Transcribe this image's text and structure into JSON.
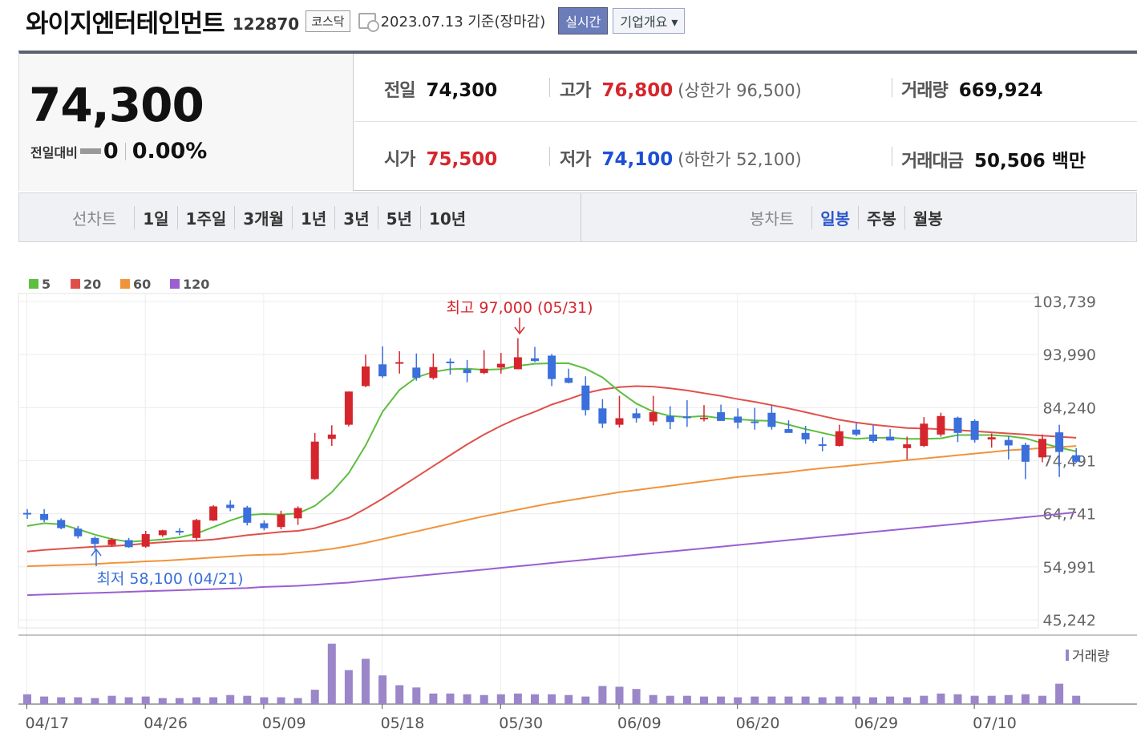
{
  "header": {
    "company": "와이지엔터테인먼트",
    "code": "122870",
    "market": "코스닥",
    "date": "2023.07.13 기준(장마감)",
    "realtime_label": "실시간",
    "company_info_label": "기업개요 ▾"
  },
  "summary": {
    "price": "74,300",
    "diff_label": "전일대비",
    "diff_value": "0",
    "diff_rate": "0.00%",
    "prev_label": "전일",
    "prev": "74,300",
    "high_label": "고가",
    "high": "76,800",
    "upper_limit": "(상한가 96,500)",
    "volume_label": "거래량",
    "volume": "669,924",
    "open_label": "시가",
    "open": "75,500",
    "low_label": "저가",
    "low": "74,100",
    "lower_limit": "(하한가 52,100)",
    "amount_label": "거래대금",
    "amount": "50,506 백만"
  },
  "period": {
    "line_label": "선차트",
    "line_items": [
      "1일",
      "1주일",
      "3개월",
      "1년",
      "3년",
      "5년",
      "10년"
    ],
    "candle_label": "봉차트",
    "candle_items": [
      "일봉",
      "주봉",
      "월봉"
    ],
    "active_candle": "일봉"
  },
  "chart_data": {
    "type": "candlestick",
    "y_ticks": [
      "103,739",
      "93,990",
      "84,240",
      "74,491",
      "64,741",
      "54,991",
      "45,242"
    ],
    "ylim": [
      45242,
      103739
    ],
    "x_ticks": [
      "04/17",
      "04/26",
      "05/09",
      "05/18",
      "05/30",
      "06/09",
      "06/20",
      "06/29",
      "07/10"
    ],
    "legend": [
      {
        "name": "5",
        "color": "#5cbf3f"
      },
      {
        "name": "20",
        "color": "#e0504a"
      },
      {
        "name": "60",
        "color": "#f0943c"
      },
      {
        "name": "120",
        "color": "#9b5fd0"
      }
    ],
    "annotations": {
      "max": "최고 97,000 (05/31)",
      "min": "최저 58,100 (04/21)"
    },
    "volume_label": "거래량",
    "up_color": "#d6262d",
    "down_color": "#3a6fdc",
    "candles": [
      [
        64900,
        65600,
        63800,
        64700
      ],
      [
        64700,
        65600,
        63200,
        63600
      ],
      [
        63600,
        63900,
        61900,
        62100
      ],
      [
        62000,
        62500,
        60200,
        60600
      ],
      [
        60300,
        60600,
        58100,
        59200
      ],
      [
        59000,
        60300,
        58700,
        60000
      ],
      [
        59900,
        60300,
        58500,
        58600
      ],
      [
        58700,
        61600,
        58500,
        61000
      ],
      [
        60800,
        61800,
        60500,
        61700
      ],
      [
        61600,
        62100,
        60800,
        61300
      ],
      [
        60300,
        63800,
        59800,
        63600
      ],
      [
        63500,
        66300,
        63400,
        66100
      ],
      [
        66400,
        67200,
        65200,
        65800
      ],
      [
        65900,
        66200,
        62600,
        63100
      ],
      [
        63000,
        63500,
        61700,
        62100
      ],
      [
        62300,
        65300,
        61900,
        64600
      ],
      [
        63900,
        66100,
        62700,
        65800
      ],
      [
        71100,
        79600,
        71000,
        78000
      ],
      [
        78500,
        81000,
        77200,
        79300
      ],
      [
        81100,
        87200,
        80800,
        87200
      ],
      [
        88200,
        94000,
        88000,
        91800
      ],
      [
        92200,
        95500,
        89700,
        90000
      ],
      [
        92400,
        94600,
        90500,
        92600
      ],
      [
        91600,
        94200,
        89200,
        89700
      ],
      [
        89700,
        94200,
        89400,
        91700
      ],
      [
        92700,
        93300,
        90300,
        92400
      ],
      [
        91300,
        93000,
        88900,
        90600
      ],
      [
        90600,
        94800,
        90400,
        91400
      ],
      [
        91600,
        94300,
        90500,
        92300
      ],
      [
        91300,
        97000,
        91300,
        93500
      ],
      [
        93300,
        95400,
        92600,
        92800
      ],
      [
        93800,
        94100,
        88200,
        89500
      ],
      [
        89700,
        91400,
        88700,
        88800
      ],
      [
        88300,
        90000,
        82800,
        83800
      ],
      [
        84100,
        85800,
        80500,
        81300
      ],
      [
        81100,
        86400,
        80600,
        82300
      ],
      [
        83200,
        84100,
        81500,
        82300
      ],
      [
        81700,
        86400,
        81000,
        83400
      ],
      [
        82700,
        84500,
        80300,
        81600
      ],
      [
        82600,
        85600,
        80700,
        82300
      ],
      [
        82300,
        84700,
        81700,
        82400
      ],
      [
        83400,
        84800,
        82200,
        81800
      ],
      [
        82600,
        84100,
        80400,
        81500
      ],
      [
        81700,
        84200,
        80200,
        81500
      ],
      [
        83300,
        84600,
        80200,
        80700
      ],
      [
        80300,
        81900,
        79800,
        79600
      ],
      [
        79600,
        80900,
        77600,
        78400
      ],
      [
        77500,
        78800,
        76200,
        77200
      ],
      [
        77200,
        81100,
        77100,
        79900
      ],
      [
        80200,
        81500,
        79000,
        79300
      ],
      [
        79300,
        81100,
        77800,
        78100
      ],
      [
        78900,
        80300,
        78300,
        78200
      ],
      [
        76800,
        78900,
        74700,
        77500
      ],
      [
        77200,
        82500,
        77000,
        81300
      ],
      [
        79300,
        83300,
        78900,
        82700
      ],
      [
        82400,
        82600,
        77900,
        79600
      ],
      [
        81800,
        82100,
        77800,
        78300
      ],
      [
        78400,
        79500,
        76900,
        78800
      ],
      [
        78300,
        79000,
        74700,
        77300
      ],
      [
        77400,
        77800,
        71100,
        74300
      ],
      [
        75100,
        79300,
        74200,
        78500
      ],
      [
        79700,
        81100,
        71500,
        76100
      ],
      [
        75500,
        76800,
        74100,
        74300
      ]
    ],
    "volumes": [
      13,
      10,
      9,
      9,
      8,
      11,
      9,
      10,
      8,
      8,
      9,
      9,
      12,
      11,
      9,
      9,
      8,
      19,
      80,
      45,
      60,
      38,
      25,
      22,
      14,
      14,
      13,
      12,
      13,
      14,
      13,
      13,
      12,
      10,
      24,
      23,
      20,
      12,
      11,
      11,
      10,
      10,
      9,
      10,
      10,
      10,
      10,
      9,
      10,
      10,
      9,
      10,
      9,
      11,
      14,
      13,
      11,
      11,
      12,
      13,
      11,
      27,
      11
    ],
    "ma5": [
      62500,
      63000,
      62800,
      61900,
      60900,
      60100,
      59600,
      59800,
      60000,
      60400,
      61100,
      62300,
      63500,
      64500,
      64700,
      64600,
      64800,
      66200,
      68700,
      72200,
      77300,
      83500,
      87500,
      89800,
      90800,
      91300,
      91400,
      91200,
      91300,
      91900,
      92300,
      92400,
      92400,
      91400,
      89800,
      87200,
      85000,
      83500,
      82700,
      82500,
      82700,
      82300,
      82100,
      81900,
      81800,
      81100,
      80300,
      79600,
      78900,
      78500,
      78700,
      78700,
      78500,
      78500,
      78600,
      79200,
      79200,
      79200,
      79000,
      78600,
      77700,
      76900,
      76200
    ],
    "ma20": [
      57800,
      58100,
      58300,
      58500,
      58700,
      58800,
      59000,
      59300,
      59500,
      59700,
      59800,
      60000,
      60400,
      60800,
      61100,
      61400,
      61600,
      62100,
      63000,
      64000,
      65700,
      67500,
      69500,
      71500,
      73500,
      75500,
      77500,
      79300,
      80900,
      82300,
      83500,
      84800,
      85800,
      86900,
      87600,
      88000,
      88200,
      88100,
      87800,
      87400,
      86900,
      86400,
      85800,
      85300,
      84700,
      84100,
      83400,
      82700,
      82000,
      81500,
      81100,
      80800,
      80500,
      80400,
      80300,
      80100,
      79900,
      79700,
      79500,
      79300,
      79100,
      78900,
      78700
    ],
    "ma60": [
      55100,
      55200,
      55300,
      55400,
      55500,
      55700,
      55800,
      56000,
      56100,
      56300,
      56500,
      56700,
      56900,
      57100,
      57200,
      57300,
      57600,
      57900,
      58300,
      58800,
      59400,
      60100,
      60800,
      61500,
      62200,
      62900,
      63600,
      64300,
      64900,
      65500,
      66100,
      66700,
      67200,
      67700,
      68200,
      68700,
      69100,
      69500,
      69900,
      70300,
      70700,
      71100,
      71500,
      71800,
      72100,
      72400,
      72800,
      73100,
      73400,
      73700,
      74000,
      74300,
      74600,
      74900,
      75200,
      75500,
      75800,
      76100,
      76400,
      76600,
      76800,
      77000,
      77200
    ],
    "ma120": [
      49800,
      49900,
      50000,
      50100,
      50200,
      50300,
      50400,
      50500,
      50600,
      50700,
      50800,
      50900,
      51000,
      51100,
      51300,
      51400,
      51500,
      51700,
      51900,
      52100,
      52400,
      52700,
      53000,
      53300,
      53600,
      53900,
      54200,
      54500,
      54800,
      55100,
      55400,
      55700,
      56000,
      56300,
      56600,
      56900,
      57200,
      57500,
      57800,
      58100,
      58400,
      58700,
      59000,
      59300,
      59600,
      59900,
      60200,
      60500,
      60800,
      61100,
      61400,
      61700,
      62000,
      62300,
      62600,
      62900,
      63200,
      63500,
      63800,
      64100,
      64400,
      64700,
      65000
    ]
  }
}
